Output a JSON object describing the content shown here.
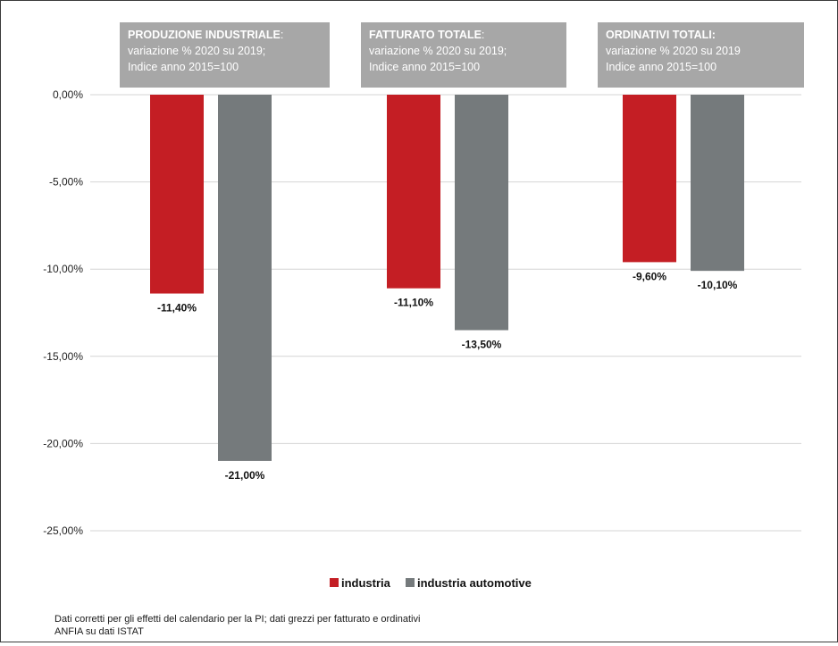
{
  "chart_data": {
    "type": "bar",
    "categories": [
      "PRODUZIONE INDUSTRIALE",
      "FATTURATO TOTALE",
      "ORDINATIVI TOTALI"
    ],
    "panels": [
      {
        "title": "PRODUZIONE INDUSTRIALE",
        "title_suffix": ":",
        "line1": "variazione % 2020 su 2019;",
        "line2": "Indice anno 2015=100"
      },
      {
        "title": "FATTURATO TOTALE",
        "title_suffix": ":",
        "line1": "variazione % 2020 su 2019;",
        "line2": "Indice anno 2015=100"
      },
      {
        "title": "ORDINATIVI TOTALI:",
        "title_suffix": "",
        "line1": "variazione % 2020 su 2019",
        "line2": "Indice anno 2015=100"
      }
    ],
    "series": [
      {
        "name": "industria",
        "color": "#c41e24",
        "values": [
          -11.4,
          -11.1,
          -9.6
        ],
        "labels": [
          "-11,40%",
          "-11,10%",
          "-9,60%"
        ]
      },
      {
        "name": "industria automotive",
        "color": "#757a7c",
        "values": [
          -21.0,
          -13.5,
          -10.1
        ],
        "labels": [
          "-21,00%",
          "-13,50%",
          "-10,10%"
        ]
      }
    ],
    "ylim": [
      -25,
      0
    ],
    "yticks": [
      0,
      -5,
      -10,
      -15,
      -20,
      -25
    ],
    "ytick_labels": [
      "0,00%",
      "-5,00%",
      "-10,00%",
      "-15,00%",
      "-20,00%",
      "-25,00%"
    ],
    "grid": true,
    "legend_position": "bottom-center"
  },
  "notes": {
    "line1": "Dati corretti per gli effetti del calendario per la PI; dati grezzi per fatturato e ordinativi",
    "line2": "ANFIA su dati ISTAT"
  }
}
